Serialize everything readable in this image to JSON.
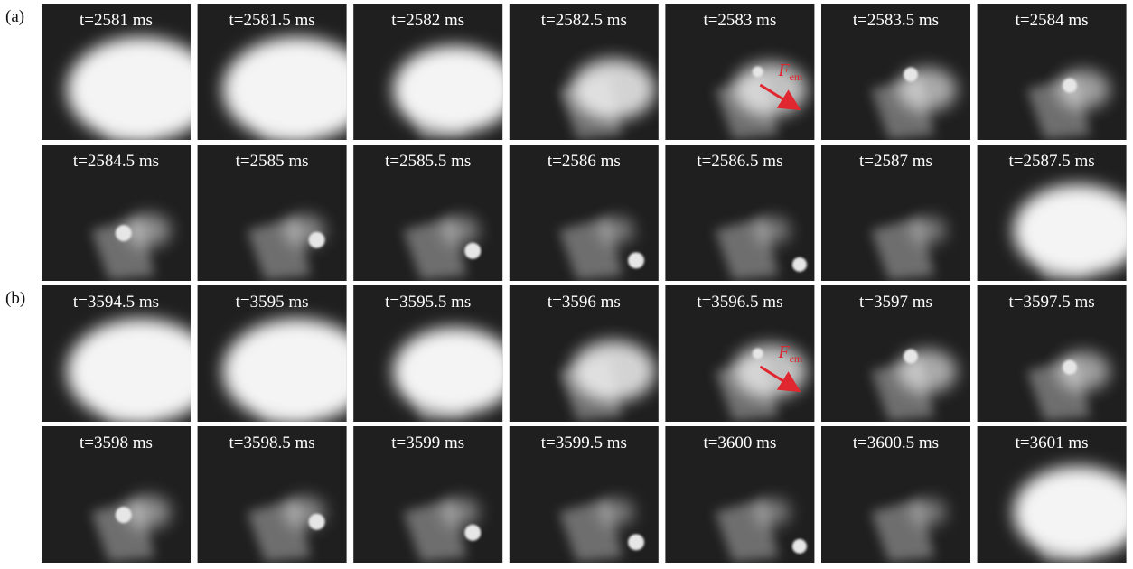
{
  "panels": [
    {
      "label": "(a)",
      "frames": [
        {
          "label": "t=2581 ms"
        },
        {
          "label": "t=2581.5 ms"
        },
        {
          "label": "t=2582 ms"
        },
        {
          "label": "t=2582.5 ms"
        },
        {
          "label": "t=2583 ms",
          "force": {
            "symbol": "F",
            "subscript": "em"
          }
        },
        {
          "label": "t=2583.5 ms"
        },
        {
          "label": "t=2584 ms"
        },
        {
          "label": "t=2584.5 ms"
        },
        {
          "label": "t=2585 ms"
        },
        {
          "label": "t=2585.5 ms"
        },
        {
          "label": "t=2586 ms"
        },
        {
          "label": "t=2586.5 ms"
        },
        {
          "label": "t=2587 ms"
        },
        {
          "label": "t=2587.5 ms"
        }
      ]
    },
    {
      "label": "(b)",
      "frames": [
        {
          "label": "t=3594.5 ms"
        },
        {
          "label": "t=3595 ms"
        },
        {
          "label": "t=3595.5 ms"
        },
        {
          "label": "t=3596 ms"
        },
        {
          "label": "t=3596.5 ms",
          "force": {
            "symbol": "F",
            "subscript": "em"
          }
        },
        {
          "label": "t=3597 ms"
        },
        {
          "label": "t=3597.5 ms"
        },
        {
          "label": "t=3598 ms"
        },
        {
          "label": "t=3598.5 ms"
        },
        {
          "label": "t=3599 ms"
        },
        {
          "label": "t=3599.5 ms"
        },
        {
          "label": "t=3600 ms"
        },
        {
          "label": "t=3600.5 ms"
        },
        {
          "label": "t=3601 ms"
        }
      ]
    }
  ]
}
